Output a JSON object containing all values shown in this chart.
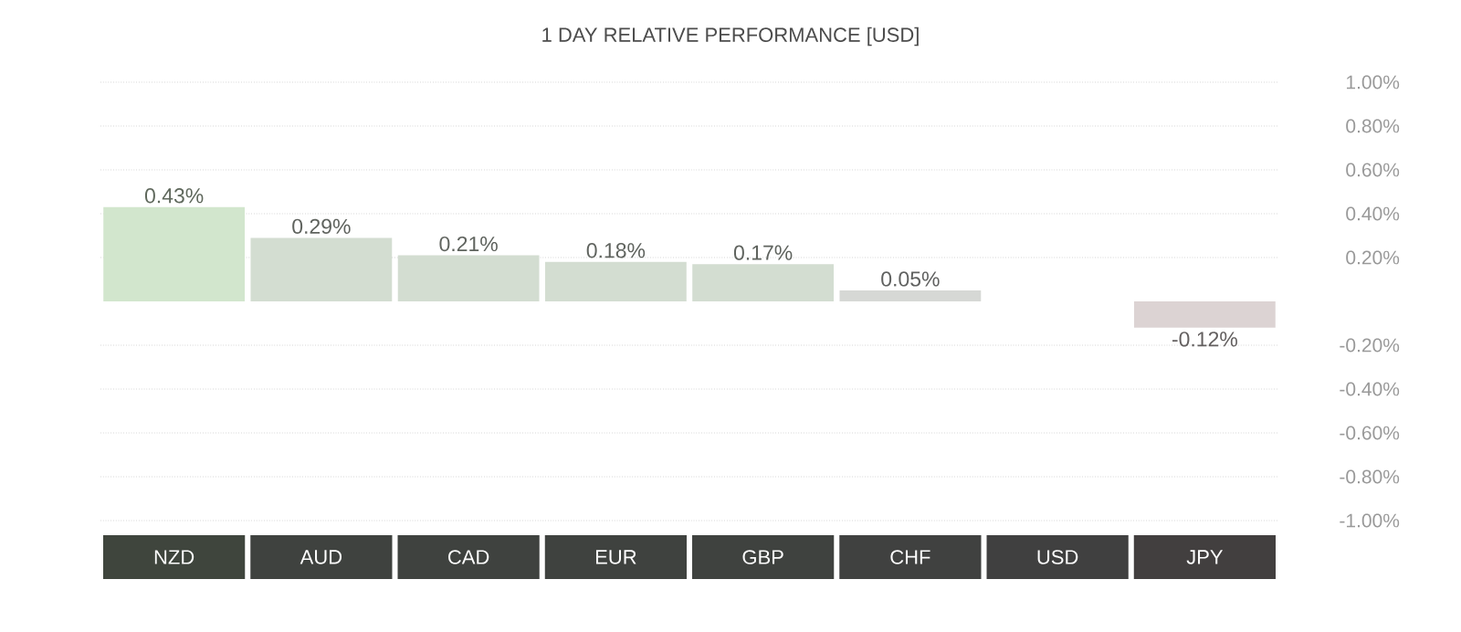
{
  "chart_data": {
    "type": "bar",
    "title": "1 DAY RELATIVE PERFORMANCE [USD]",
    "categories": [
      "NZD",
      "AUD",
      "CAD",
      "EUR",
      "GBP",
      "CHF",
      "USD",
      "JPY"
    ],
    "values": [
      0.43,
      0.29,
      0.21,
      0.18,
      0.17,
      0.05,
      0,
      -0.12
    ],
    "value_labels": [
      "0.43%",
      "0.29%",
      "0.21%",
      "0.18%",
      "0.17%",
      "0.05%",
      null,
      "-0.12%"
    ],
    "colors": [
      "#d2e6cd",
      "#d3ddd1",
      "#d3ddd1",
      "#d3ddd1",
      "#d3ddd1",
      "#d6d8d5",
      "#d6d6d6",
      "#dcd3d3"
    ],
    "ylim": [
      -1,
      1
    ],
    "yticks": [
      {
        "value": 1,
        "label": "1.00%"
      },
      {
        "value": 0.8,
        "label": "0.80%"
      },
      {
        "value": 0.6,
        "label": "0.60%"
      },
      {
        "value": 0.4,
        "label": "0.40%"
      },
      {
        "value": 0.2,
        "label": "0.20%"
      },
      {
        "value": -0.2,
        "label": "-0.20%"
      },
      {
        "value": -0.4,
        "label": "-0.40%"
      },
      {
        "value": -0.6,
        "label": "-0.60%"
      },
      {
        "value": -0.8,
        "label": "-0.80%"
      },
      {
        "value": -1,
        "label": "-1.00%"
      }
    ],
    "grid": "y"
  }
}
